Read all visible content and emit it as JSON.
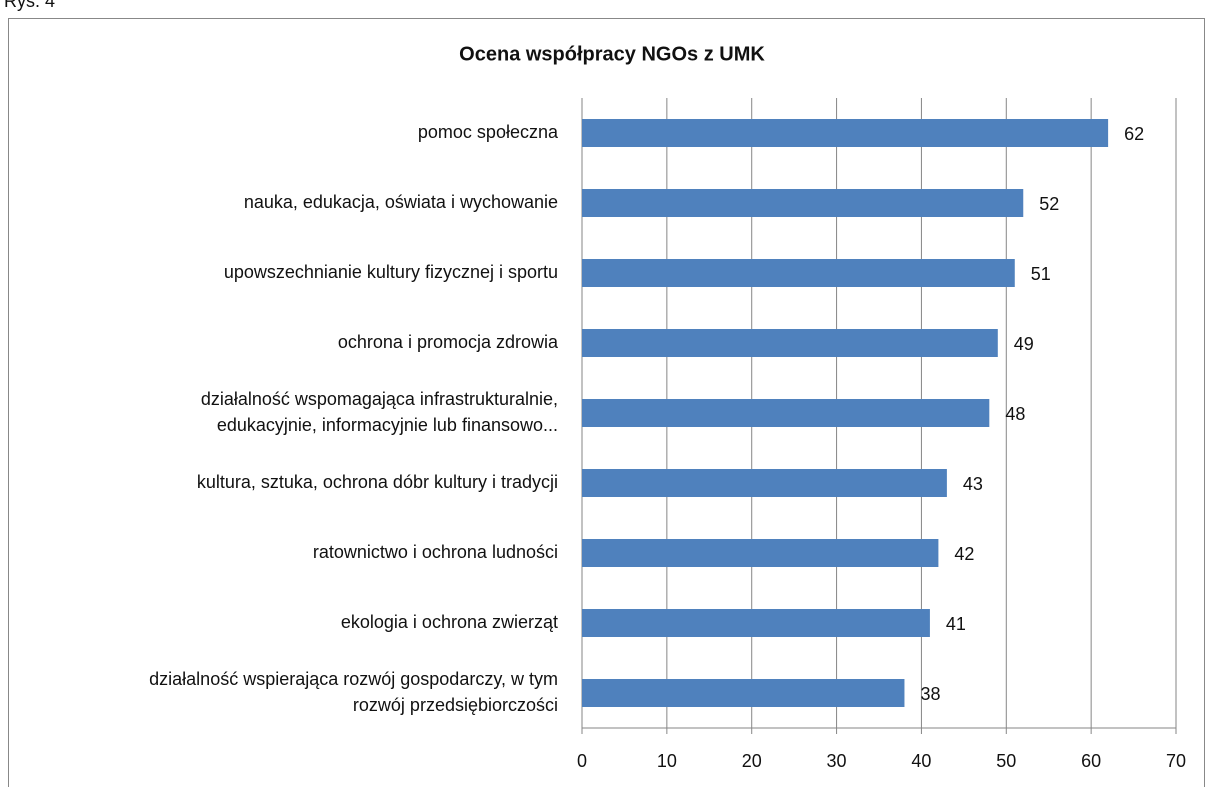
{
  "caption": "Rys. 4",
  "chart_data": {
    "type": "hbar",
    "title": "Ocena współpracy NGOs z UMK",
    "categories": [
      "pomoc społeczna",
      "nauka, edukacja, oświata i wychowanie",
      "upowszechnianie kultury fizycznej i sportu",
      "ochrona i promocja zdrowia",
      "działalność wspomagająca infrastrukturalnie,\nedukacyjnie, informacyjnie lub finansowo...",
      "kultura, sztuka, ochrona dóbr kultury i tradycji",
      "ratownictwo i ochrona ludności",
      "ekologia i ochrona zwierząt",
      "działalność wspierająca rozwój gospodarczy, w tym\nrozwój przedsiębiorczości"
    ],
    "values": [
      62,
      52,
      51,
      49,
      48,
      43,
      42,
      41,
      38
    ],
    "color": "#4f81bd",
    "xlim": [
      0,
      70
    ],
    "xticks": [
      0,
      10,
      20,
      30,
      40,
      50,
      60,
      70
    ],
    "grid": true
  }
}
